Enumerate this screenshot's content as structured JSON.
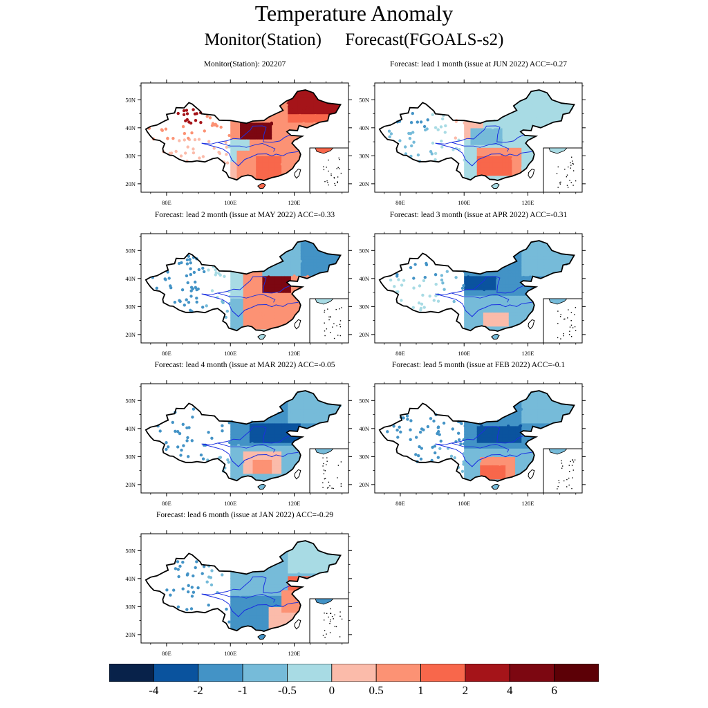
{
  "title": "Temperature Anomaly",
  "subtitle": {
    "left": "Monitor(Station)",
    "right": "Forecast(FGOALS-s2)"
  },
  "axes": {
    "x_ticks": [
      "80E",
      "100E",
      "120E"
    ],
    "y_ticks": [
      "50N",
      "40N",
      "30N",
      "20N"
    ]
  },
  "panels": [
    {
      "title": "Monitor(Station): 202207",
      "pattern": "monitor"
    },
    {
      "title": "Forecast: lead 1 month (issue at JUN 2022) ACC=-0.27",
      "pattern": "lead1"
    },
    {
      "title": "Forecast: lead 2 month (issue at MAY 2022) ACC=-0.33",
      "pattern": "lead2"
    },
    {
      "title": "Forecast: lead 3 month (issue at APR 2022) ACC=-0.31",
      "pattern": "lead3"
    },
    {
      "title": "Forecast: lead 4 month (issue at MAR 2022) ACC=-0.05",
      "pattern": "lead4"
    },
    {
      "title": "Forecast: lead 5 month (issue at FEB 2022) ACC=-0.1",
      "pattern": "lead5"
    },
    {
      "title": "Forecast: lead 6 month (issue at JAN 2022) ACC=-0.29",
      "pattern": "lead6"
    }
  ],
  "colorbar": {
    "colors": [
      "#08224a",
      "#0a539e",
      "#4393c6",
      "#76bbd9",
      "#a8dbe4",
      "#fbbbaa",
      "#fc9274",
      "#f8674b",
      "#a51419",
      "#7c0711",
      "#5c0006"
    ],
    "labels": [
      "-4",
      "-2",
      "-1",
      "-0.5",
      "0",
      "0.5",
      "1",
      "2",
      "4",
      "6"
    ]
  }
}
